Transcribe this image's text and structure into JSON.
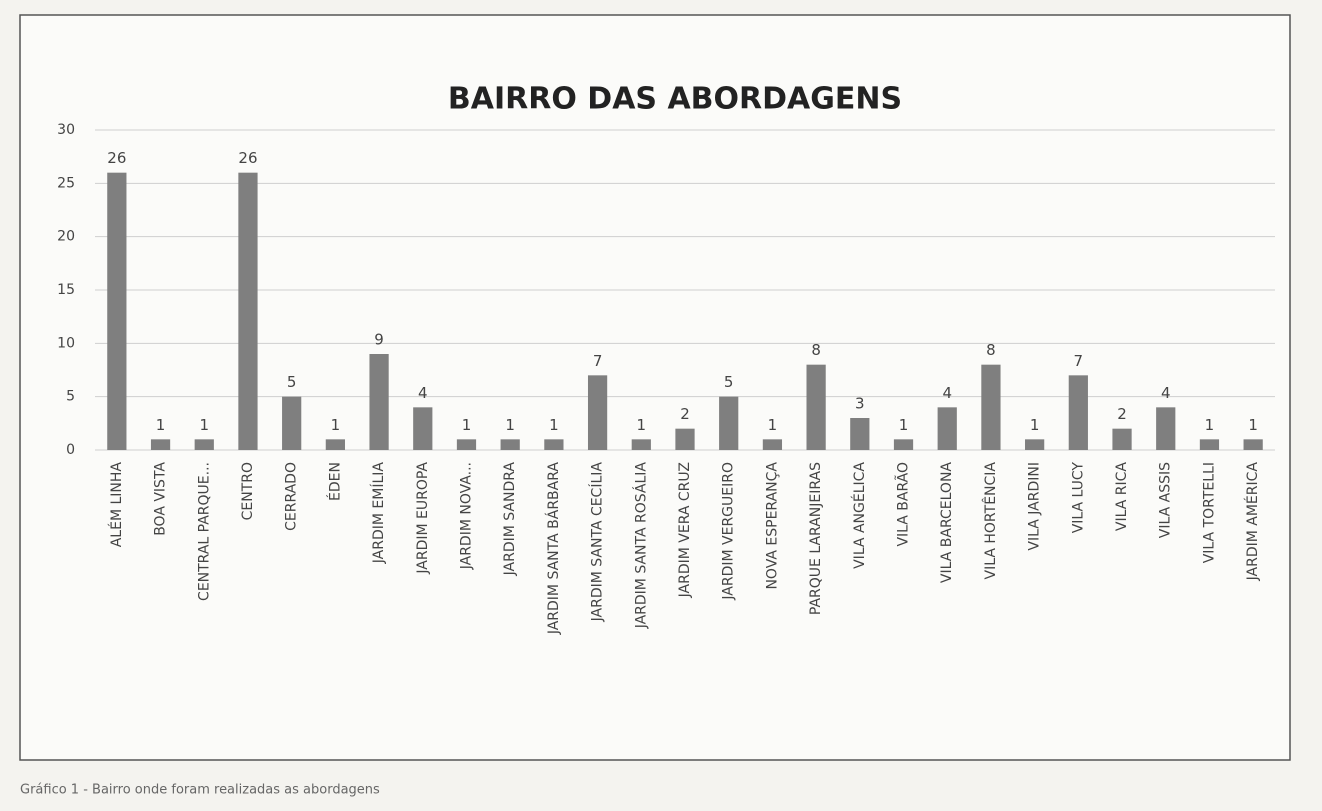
{
  "chart_data": {
    "type": "bar",
    "title": "BAIRRO DAS ABORDAGENS",
    "categories": [
      "ALÉM LINHA",
      "BOA VISTA",
      "CENTRAL PARQUE...",
      "CENTRO",
      "CERRADO",
      "ÉDEN",
      "JARDIM EMÍLIA",
      "JARDIM EUROPA",
      "JARDIM NOVA...",
      "JARDIM SANDRA",
      "JARDIM SANTA BÁRBARA",
      "JARDIM SANTA CECÍLIA",
      "JARDIM SANTA ROSÁLIA",
      "JARDIM VERA CRUZ",
      "JARDIM VERGUEIRO",
      "NOVA ESPERANÇA",
      "PARQUE LARANJEIRAS",
      "VILA ANGÉLICA",
      "VILA BARÃO",
      "VILA BARCELONA",
      "VILA HORTÊNCIA",
      "VILA JARDINI",
      "VILA LUCY",
      "VILA RICA",
      "VILA ASSIS",
      "VILA TORTELLI",
      "JARDIM AMÉRICA"
    ],
    "values": [
      26,
      1,
      1,
      26,
      5,
      1,
      9,
      4,
      1,
      1,
      1,
      7,
      1,
      2,
      5,
      1,
      8,
      3,
      1,
      4,
      8,
      1,
      7,
      2,
      4,
      1,
      1
    ],
    "color": "#7f7f7f",
    "ylim": [
      0,
      30
    ],
    "yticks": [
      0,
      5,
      10,
      15,
      20,
      25,
      30
    ],
    "grid": true
  },
  "caption": "Gráfico 1 - Bairro onde foram realizadas as abordagens"
}
